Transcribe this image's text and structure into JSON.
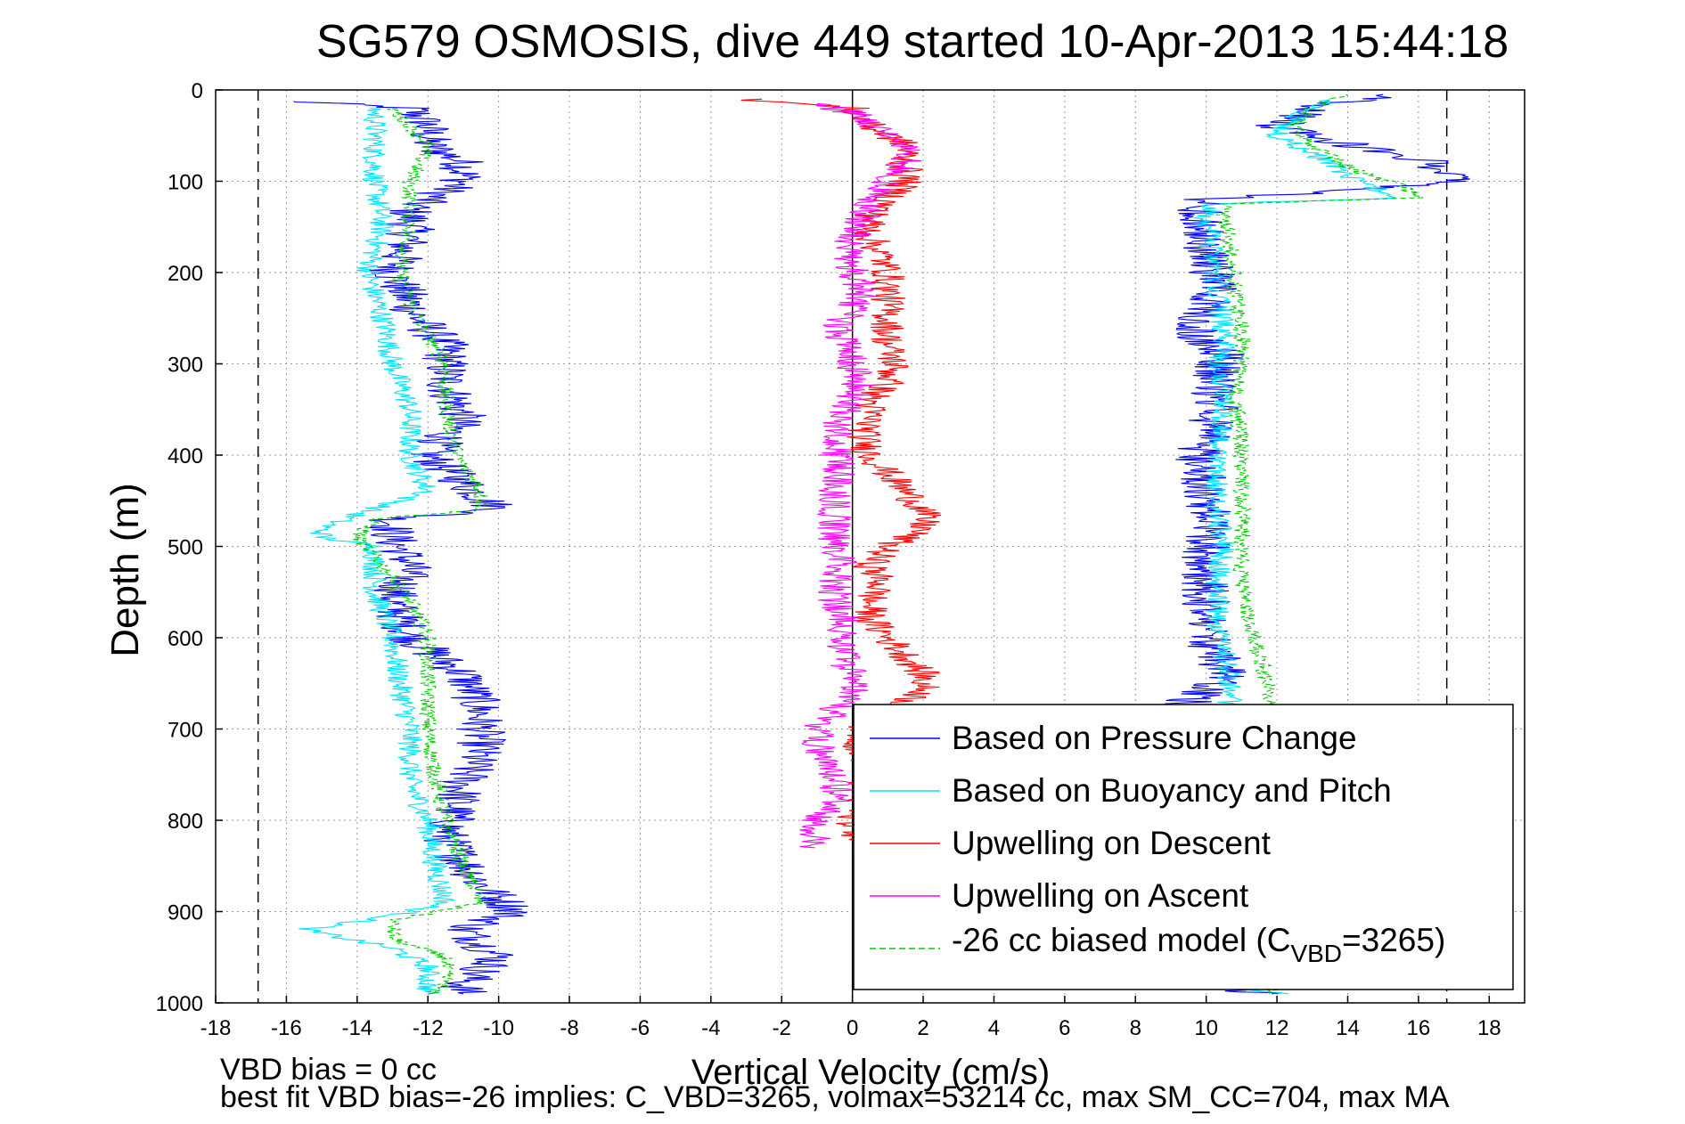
{
  "chart_data": {
    "type": "line",
    "title": "SG579 OSMOSIS, dive 449 started 10-Apr-2013 15:44:18",
    "xlabel": "Vertical Velocity (cm/s)",
    "ylabel": "Depth (m)",
    "xlim": [
      -18,
      19
    ],
    "ylim": [
      0,
      1000
    ],
    "y_reversed": true,
    "grid": true,
    "x_ticks": [
      "-18",
      "-16",
      "-14",
      "-12",
      "-10",
      "-8",
      "-6",
      "-4",
      "-2",
      "0",
      "2",
      "4",
      "6",
      "8",
      "10",
      "12",
      "14",
      "16",
      "18"
    ],
    "y_ticks": [
      "0",
      "100",
      "200",
      "300",
      "400",
      "500",
      "600",
      "700",
      "800",
      "900",
      "1000"
    ],
    "reference_lines": [
      {
        "x": -16.8,
        "style": "dashed",
        "color": "#000000"
      },
      {
        "x": 0,
        "style": "solid",
        "color": "#000000"
      },
      {
        "x": 16.8,
        "style": "dashed",
        "color": "#000000"
      }
    ],
    "legend_position": "lower-right",
    "legend": [
      {
        "label": "Based on Pressure Change",
        "color": "#0000ff",
        "dash": false
      },
      {
        "label": "Based on Buoyancy and Pitch",
        "color": "#00e5ff",
        "dash": false
      },
      {
        "label": "Upwelling on Descent",
        "color": "#ff0000",
        "dash": false
      },
      {
        "label": "Upwelling on Ascent",
        "color": "#ff00ff",
        "dash": false
      },
      {
        "label_main": "-26 cc biased model (C",
        "label_sub": "VBD",
        "label_tail": "=3265)",
        "color": "#00cc00",
        "dash": true
      }
    ],
    "series": [
      {
        "name": "Based on Pressure Change",
        "color": "#0000ff",
        "noise": 0.7,
        "points": [
          [
            -16,
            12
          ],
          [
            -12.5,
            20
          ],
          [
            -12,
            40
          ],
          [
            -12,
            60
          ],
          [
            -11,
            80
          ],
          [
            -11,
            100
          ],
          [
            -12.5,
            130
          ],
          [
            -12.5,
            160
          ],
          [
            -13,
            200
          ],
          [
            -12.3,
            250
          ],
          [
            -11.5,
            280
          ],
          [
            -11.5,
            320
          ],
          [
            -11,
            360
          ],
          [
            -12,
            400
          ],
          [
            -11,
            430
          ],
          [
            -10,
            460
          ],
          [
            -13,
            470
          ],
          [
            -13,
            490
          ],
          [
            -12.5,
            520
          ],
          [
            -13,
            560
          ],
          [
            -12.5,
            600
          ],
          [
            -11,
            640
          ],
          [
            -10.5,
            680
          ],
          [
            -10.5,
            720
          ],
          [
            -11,
            760
          ],
          [
            -11.5,
            820
          ],
          [
            -10.5,
            870
          ],
          [
            -9.5,
            900
          ],
          [
            -11,
            920
          ],
          [
            -10,
            950
          ],
          [
            -11,
            980
          ],
          [
            -11,
            990
          ]
        ]
      },
      {
        "name": "Based on Buoyancy and Pitch",
        "color": "#00e5ff",
        "noise": 0.35,
        "points": [
          [
            -13.5,
            20
          ],
          [
            -13.5,
            60
          ],
          [
            -13.5,
            100
          ],
          [
            -13.3,
            150
          ],
          [
            -13.7,
            200
          ],
          [
            -13.2,
            260
          ],
          [
            -13,
            300
          ],
          [
            -12.5,
            350
          ],
          [
            -12.5,
            400
          ],
          [
            -12,
            440
          ],
          [
            -14,
            465
          ],
          [
            -15,
            480
          ],
          [
            -15,
            490
          ],
          [
            -13.5,
            500
          ],
          [
            -13.5,
            550
          ],
          [
            -13,
            600
          ],
          [
            -12.8,
            650
          ],
          [
            -12.5,
            700
          ],
          [
            -12.5,
            760
          ],
          [
            -12,
            800
          ],
          [
            -11.8,
            850
          ],
          [
            -11.5,
            890
          ],
          [
            -13,
            905
          ],
          [
            -15.5,
            920
          ],
          [
            -13,
            940
          ],
          [
            -12,
            960
          ],
          [
            -12,
            980
          ],
          [
            -12,
            990
          ]
        ]
      },
      {
        "name": "",
        "color": "#00cc00",
        "dash": true,
        "noise": 0.25,
        "points": [
          [
            -13,
            20
          ],
          [
            -12,
            60
          ],
          [
            -12.5,
            100
          ],
          [
            -12.5,
            150
          ],
          [
            -12.8,
            200
          ],
          [
            -12.3,
            250
          ],
          [
            -11.5,
            300
          ],
          [
            -11.5,
            340
          ],
          [
            -11.2,
            400
          ],
          [
            -10.5,
            440
          ],
          [
            -10.5,
            460
          ],
          [
            -13.5,
            470
          ],
          [
            -14,
            490
          ],
          [
            -13.3,
            520
          ],
          [
            -12.5,
            560
          ],
          [
            -12,
            600
          ],
          [
            -12,
            650
          ],
          [
            -12,
            700
          ],
          [
            -11.8,
            750
          ],
          [
            -11.5,
            800
          ],
          [
            -11,
            850
          ],
          [
            -10.5,
            890
          ],
          [
            -13,
            910
          ],
          [
            -13,
            930
          ],
          [
            -11.5,
            950
          ],
          [
            -11.5,
            980
          ],
          [
            -12,
            990
          ]
        ]
      },
      {
        "name": "Based on Pressure Change",
        "color": "#0000ff",
        "noise": 0.7,
        "points": [
          [
            12,
            990
          ],
          [
            10.5,
            985
          ],
          [
            10.2,
            960
          ],
          [
            10.3,
            900
          ],
          [
            10.2,
            850
          ],
          [
            10,
            800
          ],
          [
            10,
            740
          ],
          [
            9.8,
            700
          ],
          [
            9.5,
            670
          ],
          [
            10.5,
            640
          ],
          [
            10,
            600
          ],
          [
            10,
            550
          ],
          [
            10,
            500
          ],
          [
            10,
            450
          ],
          [
            9.8,
            400
          ],
          [
            10.3,
            350
          ],
          [
            10.2,
            320
          ],
          [
            10.5,
            290
          ],
          [
            9.5,
            260
          ],
          [
            10.3,
            220
          ],
          [
            10,
            180
          ],
          [
            9.8,
            140
          ],
          [
            10,
            120
          ],
          [
            14,
            110
          ],
          [
            17,
            100
          ],
          [
            16.5,
            80
          ],
          [
            14,
            60
          ],
          [
            12,
            40
          ],
          [
            13,
            20
          ],
          [
            15,
            5
          ]
        ]
      },
      {
        "name": "Based on Buoyancy and Pitch",
        "color": "#00e5ff",
        "noise": 0.35,
        "points": [
          [
            12,
            990
          ],
          [
            10.7,
            980
          ],
          [
            10.5,
            950
          ],
          [
            10.5,
            900
          ],
          [
            10.3,
            850
          ],
          [
            10.2,
            800
          ],
          [
            10.3,
            750
          ],
          [
            10.5,
            700
          ],
          [
            10.7,
            660
          ],
          [
            10.5,
            620
          ],
          [
            10.3,
            580
          ],
          [
            10.3,
            540
          ],
          [
            10.5,
            500
          ],
          [
            10.3,
            460
          ],
          [
            10.3,
            420
          ],
          [
            10.4,
            380
          ],
          [
            10.5,
            340
          ],
          [
            10.4,
            300
          ],
          [
            10.5,
            260
          ],
          [
            10.3,
            220
          ],
          [
            10.2,
            180
          ],
          [
            10,
            140
          ],
          [
            10.2,
            125
          ],
          [
            15.5,
            118
          ],
          [
            14.5,
            105
          ],
          [
            13.5,
            80
          ],
          [
            12,
            50
          ],
          [
            12.5,
            30
          ],
          [
            13.5,
            10
          ]
        ]
      },
      {
        "name": "",
        "color": "#00cc00",
        "dash": true,
        "noise": 0.25,
        "points": [
          [
            12,
            990
          ],
          [
            11.5,
            970
          ],
          [
            11.5,
            900
          ],
          [
            11.5,
            850
          ],
          [
            11.5,
            800
          ],
          [
            11.6,
            750
          ],
          [
            11.7,
            700
          ],
          [
            11.8,
            660
          ],
          [
            11.5,
            620
          ],
          [
            11.2,
            580
          ],
          [
            11,
            540
          ],
          [
            11,
            500
          ],
          [
            11,
            460
          ],
          [
            11,
            420
          ],
          [
            11,
            380
          ],
          [
            10.8,
            340
          ],
          [
            11,
            300
          ],
          [
            11,
            260
          ],
          [
            10.8,
            220
          ],
          [
            10.7,
            180
          ],
          [
            10.5,
            140
          ],
          [
            10.5,
            125
          ],
          [
            16,
            118
          ],
          [
            15.5,
            105
          ],
          [
            14,
            85
          ],
          [
            13,
            60
          ],
          [
            12.5,
            40
          ],
          [
            13,
            20
          ],
          [
            14,
            5
          ]
        ]
      },
      {
        "name": "Upwelling on Descent",
        "color": "#ff0000",
        "noise": 0.5,
        "points": [
          [
            -3,
            10
          ],
          [
            0,
            20
          ],
          [
            0.5,
            40
          ],
          [
            1.5,
            60
          ],
          [
            1.5,
            80
          ],
          [
            1.5,
            100
          ],
          [
            1,
            120
          ],
          [
            0.5,
            140
          ],
          [
            0.5,
            160
          ],
          [
            0.8,
            180
          ],
          [
            1,
            200
          ],
          [
            1,
            220
          ],
          [
            1,
            240
          ],
          [
            1,
            260
          ],
          [
            1,
            280
          ],
          [
            1.2,
            300
          ],
          [
            1,
            320
          ],
          [
            0.5,
            340
          ],
          [
            0.5,
            360
          ],
          [
            0.3,
            380
          ],
          [
            0.5,
            400
          ],
          [
            1,
            420
          ],
          [
            1.5,
            440
          ],
          [
            2,
            460
          ],
          [
            2,
            480
          ],
          [
            1,
            500
          ],
          [
            0.5,
            520
          ],
          [
            0.8,
            540
          ],
          [
            0.5,
            560
          ],
          [
            0.5,
            580
          ],
          [
            1,
            600
          ],
          [
            1.5,
            620
          ],
          [
            2,
            640
          ],
          [
            2,
            660
          ],
          [
            1,
            680
          ],
          [
            0.3,
            700
          ],
          [
            0.2,
            720
          ],
          [
            0.5,
            740
          ],
          [
            0.3,
            760
          ],
          [
            0.2,
            780
          ],
          [
            0,
            800
          ],
          [
            0.2,
            820
          ],
          [
            0,
            830
          ]
        ]
      },
      {
        "name": "Upwelling on Ascent",
        "color": "#ff00ff",
        "noise": 0.5,
        "points": [
          [
            -1,
            830
          ],
          [
            -1,
            820
          ],
          [
            -1,
            800
          ],
          [
            -0.5,
            780
          ],
          [
            -0.5,
            760
          ],
          [
            -0.8,
            740
          ],
          [
            -1,
            720
          ],
          [
            -1,
            700
          ],
          [
            -0.5,
            680
          ],
          [
            0,
            660
          ],
          [
            0,
            640
          ],
          [
            -0.3,
            620
          ],
          [
            -0.3,
            600
          ],
          [
            -0.3,
            580
          ],
          [
            -0.5,
            560
          ],
          [
            -0.5,
            540
          ],
          [
            -0.2,
            520
          ],
          [
            -0.5,
            500
          ],
          [
            -0.5,
            480
          ],
          [
            -0.5,
            460
          ],
          [
            -0.5,
            440
          ],
          [
            -0.3,
            420
          ],
          [
            -0.5,
            400
          ],
          [
            -0.5,
            380
          ],
          [
            -0.3,
            360
          ],
          [
            0,
            340
          ],
          [
            0.2,
            320
          ],
          [
            0,
            300
          ],
          [
            -0.2,
            280
          ],
          [
            -0.5,
            260
          ],
          [
            0,
            240
          ],
          [
            0.3,
            220
          ],
          [
            0,
            200
          ],
          [
            -0.2,
            180
          ],
          [
            0,
            160
          ],
          [
            0.3,
            140
          ],
          [
            0.5,
            120
          ],
          [
            1,
            100
          ],
          [
            1.5,
            80
          ],
          [
            1.5,
            60
          ],
          [
            0.5,
            40
          ],
          [
            0,
            25
          ],
          [
            -1,
            15
          ]
        ]
      }
    ],
    "footer_lines": [
      "VBD bias = 0 cc",
      "best fit VBD bias=-26 implies: C_VBD=3265, volmax=53214 cc, max SM_CC=704, max MA"
    ]
  }
}
